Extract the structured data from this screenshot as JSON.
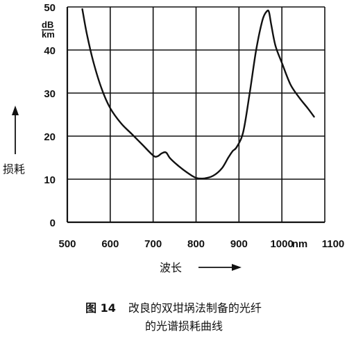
{
  "chart_data": {
    "type": "line",
    "title": "",
    "xlabel": "波长",
    "ylabel": "损耗",
    "y_unit_top": "dB",
    "y_unit_bottom": "km",
    "x_unit": "nm",
    "xlim": [
      500,
      1100
    ],
    "ylim": [
      0,
      50
    ],
    "x_ticks": [
      "500",
      "600",
      "700",
      "800",
      "900",
      "1000",
      "1100"
    ],
    "y_ticks": [
      "0",
      "10",
      "20",
      "30",
      "40",
      "50"
    ],
    "grid": true,
    "series": [
      {
        "x": [
          535,
          545,
          560,
          580,
          600,
          625,
          650,
          675,
          700,
          710,
          720,
          730,
          740,
          760,
          780,
          800,
          820,
          840,
          860,
          875,
          885,
          895,
          910,
          925,
          940,
          955,
          965,
          970,
          975,
          985,
          1000,
          1020,
          1040,
          1060,
          1075
        ],
        "y": [
          49.5,
          44,
          37.5,
          31,
          26.5,
          23,
          20.5,
          18,
          15.5,
          15.3,
          16,
          16.2,
          14.8,
          13,
          11.5,
          10.3,
          10.2,
          10.8,
          12.5,
          15,
          16.5,
          17.5,
          21,
          30,
          40,
          47,
          49,
          48.8,
          46,
          41,
          37,
          32,
          29,
          26.5,
          24.5
        ]
      }
    ]
  },
  "caption": {
    "figure_label": "图 14",
    "line1": "改良的双坩埚法制备的光纤",
    "line2": "的光谱损耗曲线"
  }
}
